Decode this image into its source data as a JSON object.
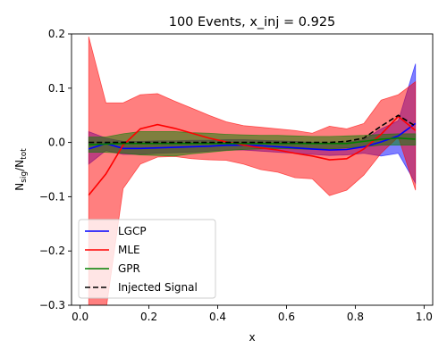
{
  "chart_data": {
    "type": "line",
    "title": "100 Events, x_inj = 0.925",
    "xlabel": "x",
    "ylabel_main": "N",
    "ylabel_sub1": "sig",
    "ylabel_sep": "/N",
    "ylabel_sub2": "tot",
    "xlim": [
      -0.025,
      1.025
    ],
    "ylim": [
      -0.3,
      0.2
    ],
    "xticks": [
      0.0,
      0.2,
      0.4,
      0.6,
      0.8,
      1.0
    ],
    "xtick_labels": [
      "0.0",
      "0.2",
      "0.4",
      "0.6",
      "0.8",
      "1.0"
    ],
    "yticks": [
      -0.3,
      -0.2,
      -0.1,
      0.0,
      0.1,
      0.2
    ],
    "ytick_labels": [
      "−0.3",
      "−0.2",
      "−0.1",
      "0.0",
      "0.1",
      "0.2"
    ],
    "x": [
      0.025,
      0.075,
      0.125,
      0.175,
      0.225,
      0.275,
      0.325,
      0.375,
      0.425,
      0.475,
      0.525,
      0.575,
      0.625,
      0.675,
      0.725,
      0.775,
      0.825,
      0.875,
      0.925,
      0.975
    ],
    "legend_position": "lower-left",
    "series": [
      {
        "name": "LGCP",
        "color": "#0000ff",
        "style": "solid",
        "values": [
          -0.012,
          -0.002,
          -0.011,
          -0.011,
          -0.01,
          -0.009,
          -0.008,
          -0.007,
          -0.005,
          -0.005,
          -0.006,
          -0.008,
          -0.01,
          -0.012,
          -0.014,
          -0.013,
          -0.008,
          0.001,
          0.012,
          0.035
        ],
        "band_lower": [
          -0.04,
          -0.015,
          -0.022,
          -0.022,
          -0.02,
          -0.019,
          -0.018,
          -0.016,
          -0.014,
          -0.014,
          -0.016,
          -0.018,
          -0.02,
          -0.022,
          -0.024,
          -0.023,
          -0.02,
          -0.025,
          -0.02,
          -0.075
        ],
        "band_upper": [
          0.02,
          0.008,
          0.002,
          0.002,
          0.003,
          0.003,
          0.004,
          0.004,
          0.005,
          0.005,
          0.004,
          0.003,
          0.002,
          0.0,
          -0.002,
          0.0,
          0.005,
          0.025,
          0.04,
          0.145
        ]
      },
      {
        "name": "MLE",
        "color": "#ff0000",
        "style": "solid",
        "values": [
          -0.097,
          -0.058,
          -0.005,
          0.025,
          0.033,
          0.026,
          0.017,
          0.008,
          0.001,
          -0.005,
          -0.01,
          -0.014,
          -0.02,
          -0.025,
          -0.032,
          -0.03,
          -0.012,
          0.015,
          0.048,
          0.022
        ],
        "band_lower": [
          -0.31,
          -0.31,
          -0.085,
          -0.04,
          -0.027,
          -0.026,
          -0.03,
          -0.032,
          -0.033,
          -0.04,
          -0.05,
          -0.055,
          -0.065,
          -0.067,
          -0.098,
          -0.088,
          -0.06,
          -0.02,
          0.01,
          -0.088
        ],
        "band_upper": [
          0.195,
          0.073,
          0.073,
          0.088,
          0.09,
          0.076,
          0.063,
          0.05,
          0.038,
          0.031,
          0.028,
          0.025,
          0.022,
          0.017,
          0.03,
          0.025,
          0.035,
          0.078,
          0.088,
          0.112
        ]
      },
      {
        "name": "GPR",
        "color": "#008000",
        "style": "solid",
        "values": [
          -0.004,
          -0.003,
          -0.002,
          -0.002,
          -0.002,
          -0.002,
          -0.002,
          -0.002,
          -0.002,
          -0.002,
          -0.002,
          -0.002,
          -0.002,
          -0.002,
          -0.002,
          -0.002,
          0.002,
          0.006,
          0.008,
          0.006
        ],
        "band_lower": [
          -0.018,
          -0.018,
          -0.02,
          -0.023,
          -0.024,
          -0.025,
          -0.021,
          -0.018,
          -0.015,
          -0.013,
          -0.012,
          -0.011,
          -0.012,
          -0.013,
          -0.012,
          -0.01,
          -0.008,
          -0.005,
          -0.005,
          -0.005
        ],
        "band_upper": [
          0.01,
          0.01,
          0.016,
          0.02,
          0.02,
          0.02,
          0.018,
          0.017,
          0.015,
          0.014,
          0.013,
          0.013,
          0.012,
          0.011,
          0.011,
          0.012,
          0.013,
          0.015,
          0.016,
          0.016
        ]
      },
      {
        "name": "Injected Signal",
        "color": "#000000",
        "style": "dashed",
        "values": [
          0.0,
          0.0,
          0.0,
          0.0,
          0.0,
          0.0,
          0.0,
          0.0,
          0.0,
          0.0,
          0.0,
          0.0,
          0.0,
          0.0,
          0.0,
          0.002,
          0.008,
          0.03,
          0.05,
          0.03
        ]
      }
    ]
  }
}
